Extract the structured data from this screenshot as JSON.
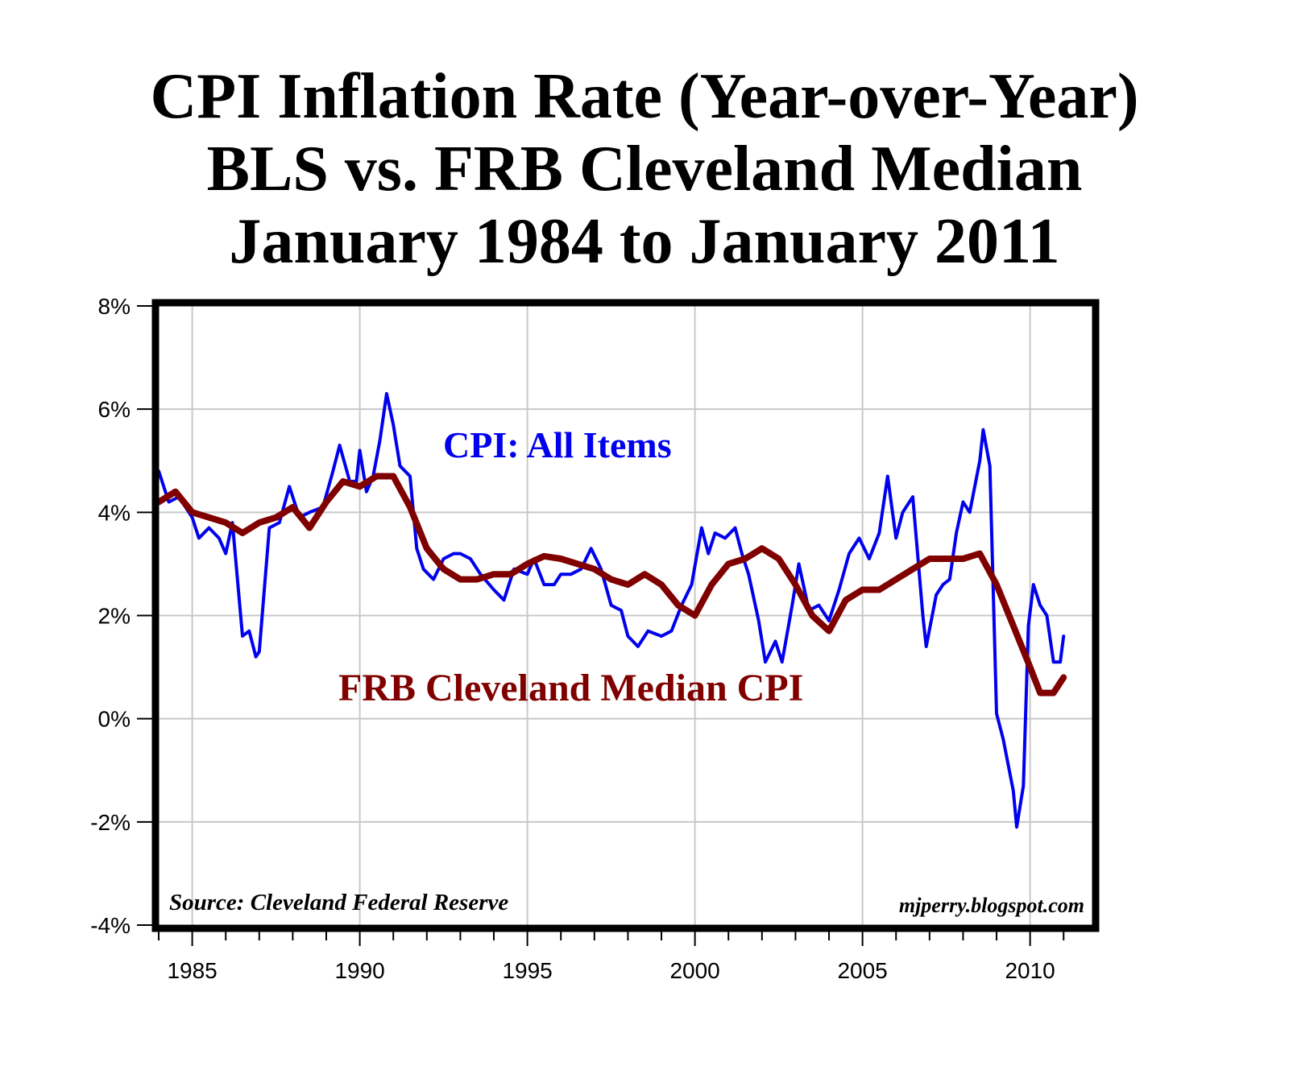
{
  "chart_data": {
    "type": "line",
    "title": [
      "CPI Inflation Rate (Year-over-Year)",
      "BLS vs. FRB Cleveland Median",
      "January 1984 to January 2011"
    ],
    "xlabel": "",
    "ylabel": "",
    "xlim": [
      1984,
      2011.86
    ],
    "ylim": [
      -4,
      8
    ],
    "y_ticks": [
      -4,
      -2,
      0,
      2,
      4,
      6,
      8
    ],
    "y_tick_labels": [
      "-4%",
      "-2%",
      "0%",
      "2%",
      "4%",
      "6%",
      "8%"
    ],
    "x_ticks": [
      1985,
      1990,
      1995,
      2000,
      2005,
      2010
    ],
    "x_tick_labels": [
      "1985",
      "1990",
      "1995",
      "2000",
      "2005",
      "2010"
    ],
    "grid": true,
    "annotations": {
      "source": "Source: Cleveland Federal Reserve",
      "credit": "mjperry.blogspot.com"
    },
    "series": [
      {
        "name": "CPI: All Items",
        "color": "#0000ee",
        "points": [
          [
            1984.0,
            4.8
          ],
          [
            1984.3,
            4.2
          ],
          [
            1984.6,
            4.3
          ],
          [
            1985.0,
            3.9
          ],
          [
            1985.2,
            3.5
          ],
          [
            1985.5,
            3.7
          ],
          [
            1985.8,
            3.5
          ],
          [
            1986.0,
            3.2
          ],
          [
            1986.2,
            3.8
          ],
          [
            1986.5,
            1.6
          ],
          [
            1986.7,
            1.7
          ],
          [
            1986.9,
            1.2
          ],
          [
            1987.0,
            1.3
          ],
          [
            1987.3,
            3.7
          ],
          [
            1987.6,
            3.8
          ],
          [
            1987.9,
            4.5
          ],
          [
            1988.2,
            3.9
          ],
          [
            1988.5,
            4.0
          ],
          [
            1988.9,
            4.1
          ],
          [
            1989.2,
            4.8
          ],
          [
            1989.4,
            5.3
          ],
          [
            1989.7,
            4.6
          ],
          [
            1989.9,
            4.6
          ],
          [
            1990.0,
            5.2
          ],
          [
            1990.2,
            4.4
          ],
          [
            1990.4,
            4.7
          ],
          [
            1990.6,
            5.4
          ],
          [
            1990.8,
            6.3
          ],
          [
            1991.0,
            5.7
          ],
          [
            1991.2,
            4.9
          ],
          [
            1991.5,
            4.7
          ],
          [
            1991.7,
            3.3
          ],
          [
            1991.9,
            2.9
          ],
          [
            1992.2,
            2.7
          ],
          [
            1992.5,
            3.1
          ],
          [
            1992.8,
            3.2
          ],
          [
            1993.0,
            3.2
          ],
          [
            1993.3,
            3.1
          ],
          [
            1993.6,
            2.8
          ],
          [
            1994.0,
            2.5
          ],
          [
            1994.3,
            2.3
          ],
          [
            1994.6,
            2.9
          ],
          [
            1995.0,
            2.8
          ],
          [
            1995.2,
            3.1
          ],
          [
            1995.5,
            2.6
          ],
          [
            1995.8,
            2.6
          ],
          [
            1996.0,
            2.8
          ],
          [
            1996.3,
            2.8
          ],
          [
            1996.6,
            2.9
          ],
          [
            1996.9,
            3.3
          ],
          [
            1997.2,
            2.9
          ],
          [
            1997.5,
            2.2
          ],
          [
            1997.8,
            2.1
          ],
          [
            1998.0,
            1.6
          ],
          [
            1998.3,
            1.4
          ],
          [
            1998.6,
            1.7
          ],
          [
            1999.0,
            1.6
          ],
          [
            1999.3,
            1.7
          ],
          [
            1999.6,
            2.2
          ],
          [
            1999.9,
            2.6
          ],
          [
            2000.2,
            3.7
          ],
          [
            2000.4,
            3.2
          ],
          [
            2000.6,
            3.6
          ],
          [
            2000.9,
            3.5
          ],
          [
            2001.2,
            3.7
          ],
          [
            2001.4,
            3.2
          ],
          [
            2001.6,
            2.8
          ],
          [
            2001.9,
            1.9
          ],
          [
            2002.1,
            1.1
          ],
          [
            2002.4,
            1.5
          ],
          [
            2002.6,
            1.1
          ],
          [
            2002.9,
            2.2
          ],
          [
            2003.1,
            3.0
          ],
          [
            2003.4,
            2.1
          ],
          [
            2003.7,
            2.2
          ],
          [
            2004.0,
            1.9
          ],
          [
            2004.3,
            2.5
          ],
          [
            2004.6,
            3.2
          ],
          [
            2004.9,
            3.5
          ],
          [
            2005.2,
            3.1
          ],
          [
            2005.5,
            3.6
          ],
          [
            2005.75,
            4.7
          ],
          [
            2006.0,
            3.5
          ],
          [
            2006.2,
            4.0
          ],
          [
            2006.5,
            4.3
          ],
          [
            2006.8,
            2.0
          ],
          [
            2006.9,
            1.4
          ],
          [
            2007.2,
            2.4
          ],
          [
            2007.4,
            2.6
          ],
          [
            2007.6,
            2.7
          ],
          [
            2007.8,
            3.6
          ],
          [
            2008.0,
            4.2
          ],
          [
            2008.2,
            4.0
          ],
          [
            2008.5,
            5.0
          ],
          [
            2008.6,
            5.6
          ],
          [
            2008.8,
            4.9
          ],
          [
            2009.0,
            0.1
          ],
          [
            2009.2,
            -0.4
          ],
          [
            2009.5,
            -1.4
          ],
          [
            2009.6,
            -2.1
          ],
          [
            2009.8,
            -1.3
          ],
          [
            2009.95,
            1.8
          ],
          [
            2010.1,
            2.6
          ],
          [
            2010.3,
            2.2
          ],
          [
            2010.5,
            2.0
          ],
          [
            2010.7,
            1.1
          ],
          [
            2010.9,
            1.1
          ],
          [
            2011.0,
            1.6
          ]
        ]
      },
      {
        "name": "FRB Cleveland Median CPI",
        "color": "#800000",
        "points": [
          [
            1984.0,
            4.2
          ],
          [
            1984.5,
            4.4
          ],
          [
            1985.0,
            4.0
          ],
          [
            1985.5,
            3.9
          ],
          [
            1986.0,
            3.8
          ],
          [
            1986.5,
            3.6
          ],
          [
            1987.0,
            3.8
          ],
          [
            1987.5,
            3.9
          ],
          [
            1988.0,
            4.1
          ],
          [
            1988.5,
            3.7
          ],
          [
            1989.0,
            4.2
          ],
          [
            1989.5,
            4.6
          ],
          [
            1990.0,
            4.5
          ],
          [
            1990.5,
            4.7
          ],
          [
            1991.0,
            4.7
          ],
          [
            1991.5,
            4.1
          ],
          [
            1992.0,
            3.3
          ],
          [
            1992.5,
            2.9
          ],
          [
            1993.0,
            2.7
          ],
          [
            1993.5,
            2.7
          ],
          [
            1994.0,
            2.8
          ],
          [
            1994.5,
            2.8
          ],
          [
            1995.0,
            3.0
          ],
          [
            1995.5,
            3.15
          ],
          [
            1996.0,
            3.1
          ],
          [
            1996.5,
            3.0
          ],
          [
            1997.0,
            2.9
          ],
          [
            1997.5,
            2.7
          ],
          [
            1998.0,
            2.6
          ],
          [
            1998.5,
            2.8
          ],
          [
            1999.0,
            2.6
          ],
          [
            1999.5,
            2.2
          ],
          [
            2000.0,
            2.0
          ],
          [
            2000.5,
            2.6
          ],
          [
            2001.0,
            3.0
          ],
          [
            2001.5,
            3.1
          ],
          [
            2002.0,
            3.3
          ],
          [
            2002.5,
            3.1
          ],
          [
            2003.0,
            2.6
          ],
          [
            2003.5,
            2.0
          ],
          [
            2004.0,
            1.7
          ],
          [
            2004.5,
            2.3
          ],
          [
            2005.0,
            2.5
          ],
          [
            2005.5,
            2.5
          ],
          [
            2006.0,
            2.7
          ],
          [
            2006.5,
            2.9
          ],
          [
            2007.0,
            3.1
          ],
          [
            2007.5,
            3.1
          ],
          [
            2008.0,
            3.1
          ],
          [
            2008.5,
            3.2
          ],
          [
            2009.0,
            2.6
          ],
          [
            2009.5,
            1.8
          ],
          [
            2010.0,
            1.0
          ],
          [
            2010.3,
            0.5
          ],
          [
            2010.7,
            0.5
          ],
          [
            2011.0,
            0.8
          ]
        ]
      }
    ]
  }
}
